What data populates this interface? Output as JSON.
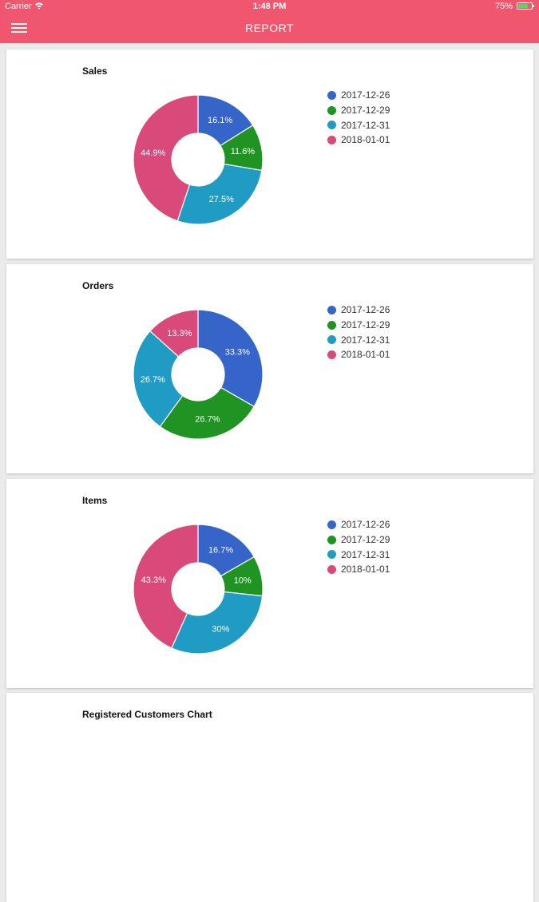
{
  "status": {
    "carrier": "Carrier",
    "time": "1:48 PM",
    "battery": "75%",
    "battery_level": 0.75
  },
  "header": {
    "title": "REPORT"
  },
  "legend_labels": [
    "2017-12-26",
    "2017-12-29",
    "2017-12-31",
    "2018-01-01"
  ],
  "colors": [
    "#3565c9",
    "#1f9422",
    "#1f9bc4",
    "#d9497a"
  ],
  "charts": [
    {
      "title": "Sales",
      "chart_data": {
        "type": "pie",
        "categories": [
          "2017-12-26",
          "2017-12-29",
          "2017-12-31",
          "2018-01-01"
        ],
        "values": [
          16.1,
          11.6,
          27.5,
          44.9
        ],
        "labels": [
          "16.1%",
          "11.6%",
          "27.5%",
          "44.9%"
        ]
      }
    },
    {
      "title": "Orders",
      "chart_data": {
        "type": "pie",
        "categories": [
          "2017-12-26",
          "2017-12-29",
          "2017-12-31",
          "2018-01-01"
        ],
        "values": [
          33.3,
          26.7,
          26.7,
          13.3
        ],
        "labels": [
          "33.3%",
          "26.7%",
          "26.7%",
          "13.3%"
        ]
      }
    },
    {
      "title": "Items",
      "chart_data": {
        "type": "pie",
        "categories": [
          "2017-12-26",
          "2017-12-29",
          "2017-12-31",
          "2018-01-01"
        ],
        "values": [
          16.7,
          10,
          30,
          43.3
        ],
        "labels": [
          "16.7%",
          "10%",
          "30%",
          "43.3%"
        ]
      }
    }
  ],
  "next_card": {
    "title": "Registered Customers Chart"
  }
}
